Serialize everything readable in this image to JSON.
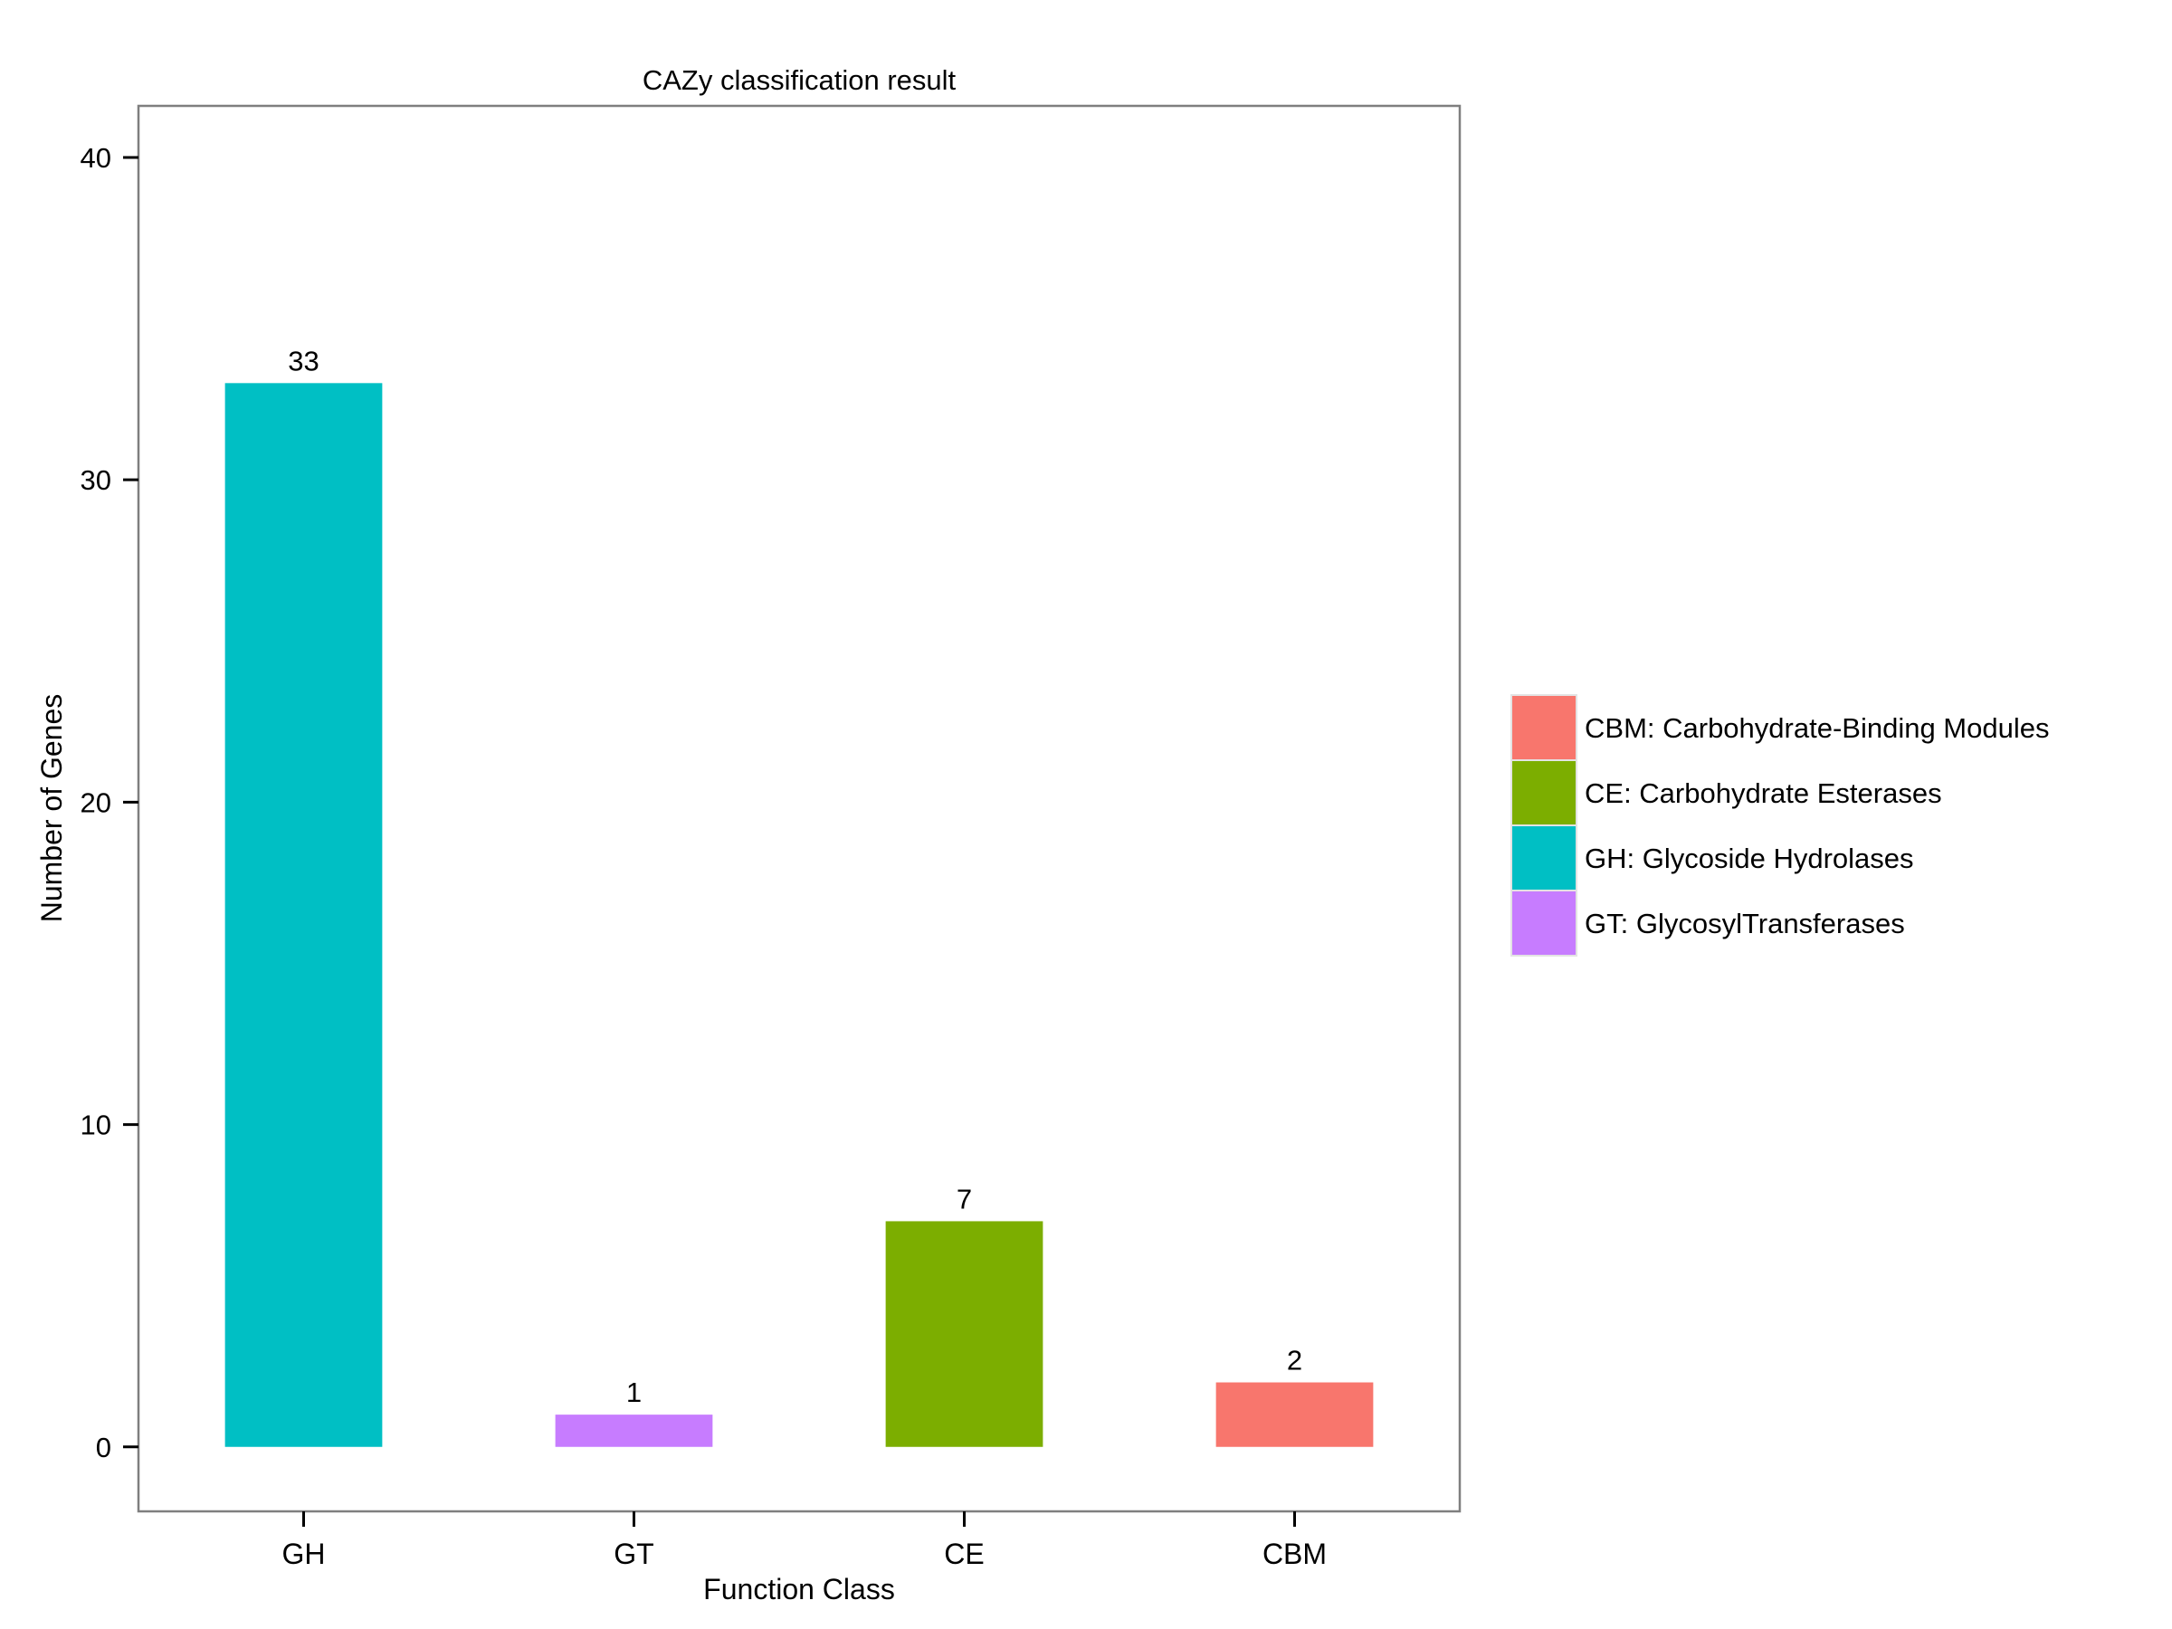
{
  "chart_data": {
    "type": "bar",
    "title": "CAZy classification result",
    "xlabel": "Function Class",
    "ylabel": "Number of Genes",
    "categories": [
      "GH",
      "GT",
      "CE",
      "CBM"
    ],
    "values": [
      33,
      1,
      7,
      2
    ],
    "data_labels": [
      "33",
      "1",
      "7",
      "2"
    ],
    "bar_colors": [
      "#00BFC4",
      "#C77CFF",
      "#7CAE00",
      "#F8766D"
    ],
    "ylim": [
      -2,
      41.6
    ],
    "yticks": [
      0,
      10,
      20,
      30,
      40
    ],
    "ytick_labels": [
      "0",
      "10",
      "20",
      "30",
      "40"
    ],
    "grid": false,
    "legend": {
      "placement": "right",
      "items": [
        {
          "label": "CBM: Carbohydrate-Binding Modules",
          "color": "#F8766D"
        },
        {
          "label": "CE: Carbohydrate Esterases",
          "color": "#7CAE00"
        },
        {
          "label": "GH: Glycoside Hydrolases",
          "color": "#00BFC4"
        },
        {
          "label": "GT: GlycosylTransferases",
          "color": "#C77CFF"
        }
      ]
    }
  }
}
